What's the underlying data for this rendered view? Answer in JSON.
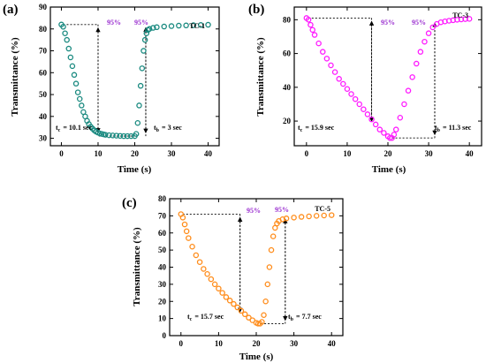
{
  "panels": [
    {
      "label": "(a)"
    },
    {
      "label": "(b)"
    },
    {
      "label": "(c)"
    }
  ],
  "chart_data": [
    {
      "type": "scatter",
      "panel": "(a)",
      "color": "#1a8a80",
      "xlabel": "Time (s)",
      "ylabel": "Transmittance (%)",
      "xlim": [
        -3,
        43
      ],
      "ylim": [
        26.6,
        90
      ],
      "xticks": [
        "0",
        "10",
        "20",
        "30",
        "40"
      ],
      "yticks": [
        "30",
        "40",
        "50",
        "60",
        "70",
        "80",
        "90"
      ],
      "xtick_values": [
        0,
        10,
        20,
        30,
        40
      ],
      "ytick_values": [
        30,
        40,
        50,
        60,
        70,
        80,
        90
      ],
      "series": [
        {
          "name": "TC-1",
          "x": [
            0,
            0.5,
            1,
            1.5,
            2,
            2.5,
            3,
            3.5,
            4,
            4.5,
            5,
            5.5,
            6,
            6.5,
            7,
            7.5,
            8,
            8.5,
            9,
            9.5,
            10,
            10.5,
            11,
            11.5,
            12,
            13,
            14,
            15,
            16,
            17,
            18,
            19,
            20,
            20.4,
            20.8,
            21.2,
            21.6,
            22,
            22.4,
            22.8,
            23.2,
            23.6,
            24,
            25,
            26,
            28,
            30,
            32,
            34,
            36,
            38,
            40
          ],
          "y": [
            82,
            81,
            78,
            75,
            71,
            67,
            63,
            59,
            55,
            51,
            48,
            45,
            42,
            40,
            38,
            36.5,
            35.3,
            34.4,
            33.6,
            33.0,
            32.6,
            32.2,
            32.0,
            31.8,
            31.6,
            31.4,
            31.3,
            31.2,
            31.1,
            31.0,
            31.0,
            31.0,
            31.0,
            32,
            37,
            45,
            54,
            62,
            70,
            75,
            78,
            79.5,
            80,
            80.5,
            80.8,
            81.1,
            81.3,
            81.5,
            81.6,
            81.7,
            81.8,
            81.9
          ]
        }
      ],
      "annotations": [
        {
          "text": "95%"
        },
        {
          "text": "95%"
        },
        {
          "text": "TC-1"
        },
        {
          "text": "t",
          "sub": "c",
          "value": "= 10.1 sec"
        },
        {
          "text": "t",
          "sub": "b",
          "value": "= 3 sec"
        }
      ]
    },
    {
      "type": "scatter",
      "panel": "(b)",
      "color": "#ff1aff",
      "xlabel": "Time (s)",
      "ylabel": "Transmittance (%)",
      "xlim": [
        -3,
        43
      ],
      "ylim": [
        5.4,
        87.5
      ],
      "xticks": [
        "0",
        "10",
        "20",
        "30",
        "40"
      ],
      "yticks": [
        "20",
        "40",
        "60",
        "80"
      ],
      "xtick_values": [
        0,
        10,
        20,
        30,
        40
      ],
      "ytick_values": [
        20,
        40,
        60,
        80
      ],
      "series": [
        {
          "name": "TC-3",
          "x": [
            0,
            0.5,
            1,
            1.5,
            2,
            3,
            4,
            5,
            6,
            7,
            8,
            9,
            10,
            11,
            12,
            13,
            14,
            15,
            16,
            17,
            18,
            19,
            20,
            20.5,
            21,
            21.5,
            22,
            23,
            24,
            25,
            26,
            27,
            28,
            29,
            30,
            31,
            32,
            33,
            34,
            35,
            36,
            37,
            38,
            39,
            40
          ],
          "y": [
            81,
            80,
            77,
            74,
            71,
            66,
            61,
            57,
            53,
            49,
            45,
            42,
            39,
            36,
            33,
            30,
            27,
            24,
            21,
            18,
            15,
            13,
            11,
            10,
            10,
            12,
            15,
            22,
            30,
            38,
            46,
            54,
            61,
            67,
            72,
            75.5,
            77.5,
            78.5,
            79,
            79.4,
            79.7,
            80,
            80.2,
            80.4,
            80.5
          ]
        }
      ],
      "annotations": [
        {
          "text": "95%"
        },
        {
          "text": "95%"
        },
        {
          "text": "TC-3"
        },
        {
          "text": "t",
          "sub": "c",
          "value": "= 15.9 sec"
        },
        {
          "text": "t",
          "sub": "b",
          "value": "= 11.3 sec"
        }
      ]
    },
    {
      "type": "scatter",
      "panel": "(c)",
      "color": "#ff8c1a",
      "xlabel": "Time (s)",
      "ylabel": "Transmittance (%)",
      "xlim": [
        -3,
        43
      ],
      "ylim": [
        0,
        80
      ],
      "xticks": [
        "0",
        "10",
        "20",
        "30",
        "40"
      ],
      "yticks": [
        "0",
        "10",
        "20",
        "30",
        "40",
        "50",
        "60",
        "70",
        "80"
      ],
      "xtick_values": [
        0,
        10,
        20,
        30,
        40
      ],
      "ytick_values": [
        0,
        10,
        20,
        30,
        40,
        50,
        60,
        70,
        80
      ],
      "series": [
        {
          "name": "TC-5",
          "x": [
            0,
            0.5,
            1,
            1.5,
            2,
            3,
            4,
            5,
            6,
            7,
            8,
            9,
            10,
            11,
            12,
            13,
            14,
            15,
            16,
            17,
            18,
            19,
            20,
            20.5,
            21,
            21.5,
            22,
            22.5,
            23,
            23.5,
            24,
            24.5,
            25,
            25.5,
            26,
            27,
            28,
            30,
            32,
            34,
            36,
            38,
            40
          ],
          "y": [
            71,
            69,
            65,
            61,
            57,
            52,
            47,
            43,
            39,
            36,
            33,
            30,
            27.5,
            25,
            22.5,
            20.5,
            18.5,
            16.5,
            14.5,
            12.5,
            10.5,
            9,
            7.5,
            7,
            7,
            8,
            12,
            20,
            30,
            40,
            50,
            58,
            63,
            65.5,
            67,
            68,
            68.5,
            69,
            69.4,
            69.7,
            70,
            70.2,
            70.4
          ]
        }
      ],
      "annotations": [
        {
          "text": "95%"
        },
        {
          "text": "95%"
        },
        {
          "text": "TC-5"
        },
        {
          "text": "t",
          "sub": "c",
          "value": "= 15.7 sec"
        },
        {
          "text": "t",
          "sub": "b",
          "value": "= 7.7 sec"
        }
      ]
    }
  ]
}
